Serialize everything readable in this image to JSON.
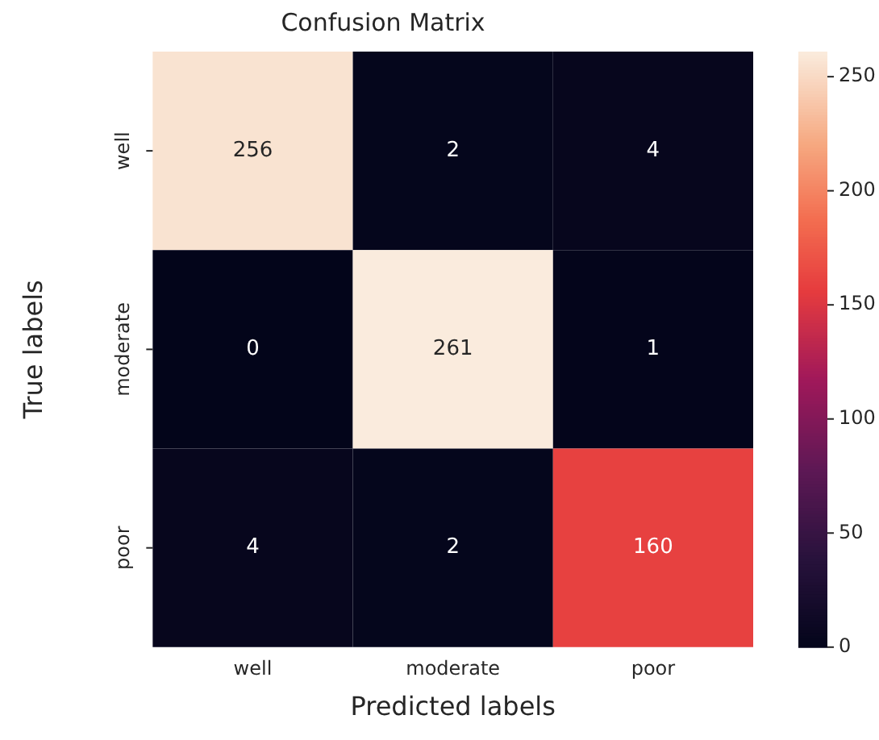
{
  "chart_data": {
    "type": "heatmap",
    "title": "Confusion Matrix",
    "xlabel": "Predicted labels",
    "ylabel": "True labels",
    "categories": [
      "well",
      "moderate",
      "poor"
    ],
    "y_categories": [
      "well",
      "moderate",
      "poor"
    ],
    "cells": [
      [
        256,
        2,
        4
      ],
      [
        0,
        261,
        1
      ],
      [
        4,
        2,
        160
      ]
    ],
    "data_labels": true,
    "clim": [
      0,
      261
    ],
    "cticks": [
      0,
      50,
      100,
      150,
      200,
      250
    ]
  }
}
